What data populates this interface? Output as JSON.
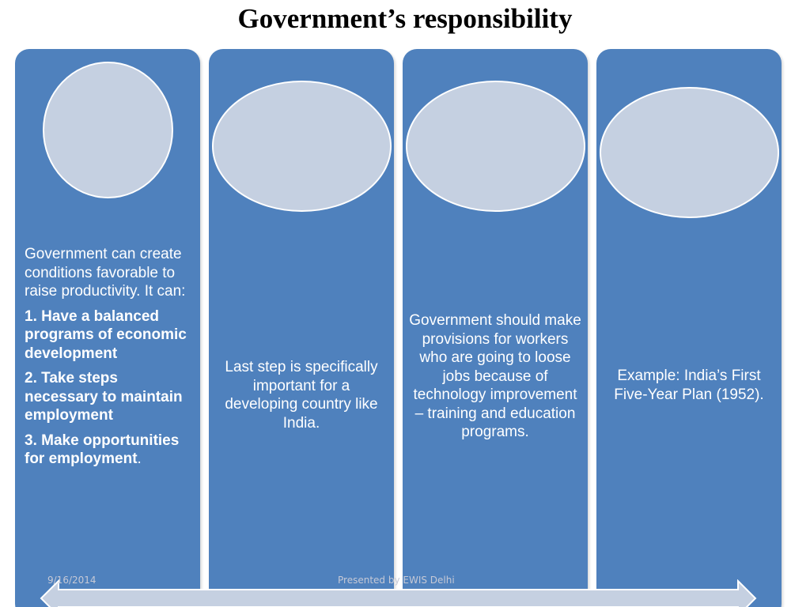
{
  "slide": {
    "title": "Government’s responsibility"
  },
  "panels": [
    {
      "intro": "Government can create conditions favorable to raise productivity. It can:",
      "items": [
        "1. Have a balanced programs of economic development",
        "2. Take steps necessary to maintain employment",
        "3. Make opportunities for employment"
      ],
      "item3_suffix": "."
    },
    {
      "text": "Last step is specifically important for a developing country like India."
    },
    {
      "text": "Government should make provisions for workers who are going to loose jobs because of technology improvement – training and education programs."
    },
    {
      "text": "Example: India’s First Five-Year Plan (1952)."
    }
  ],
  "footer": {
    "date": "9/16/2014",
    "presenter": "Presented by EWIS Delhi"
  },
  "colors": {
    "panel": "#4f81bd",
    "circle": "#c5d0e1",
    "arrow": "#c5d0e1"
  }
}
